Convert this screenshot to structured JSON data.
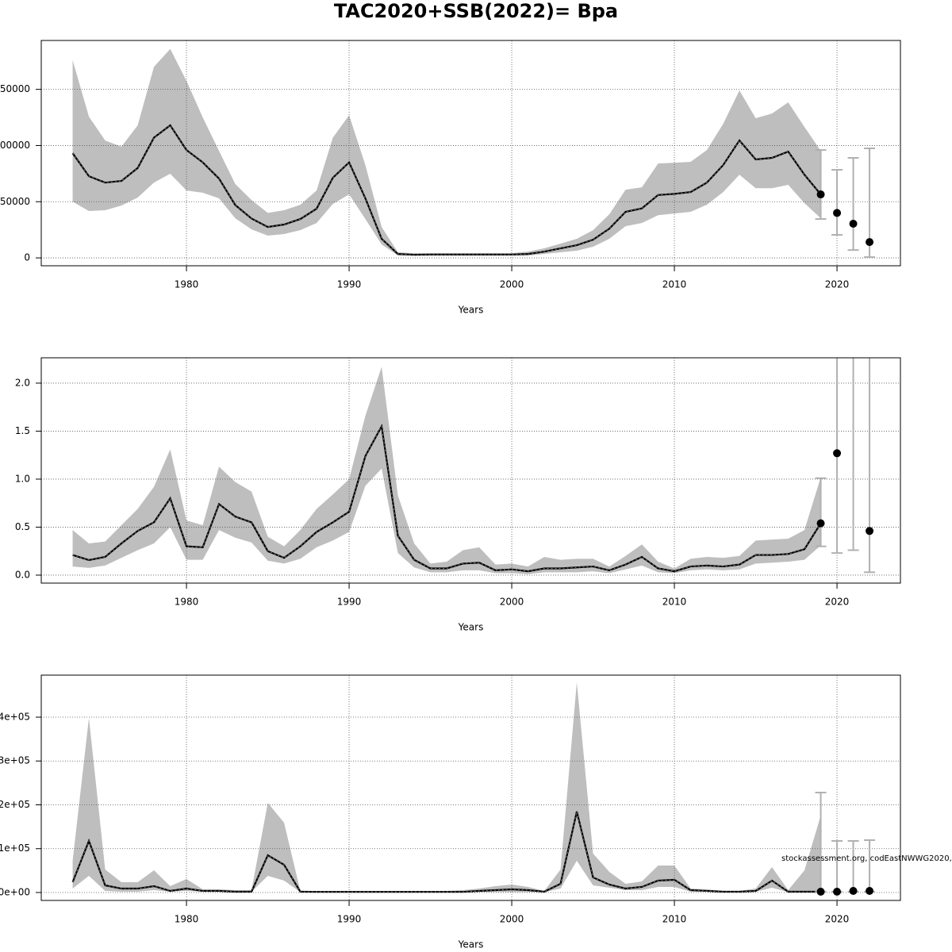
{
  "title": "TAC2020+SSB(2022)= Bpa",
  "annotation": "stockassessment.org, codEastNWWG2020,",
  "chart_data": [
    {
      "type": "line",
      "xlabel": "Years",
      "grid": true,
      "line_color": "#000000",
      "band_color": "#bebebe",
      "forecast_color": "#000000",
      "errorbar_color": "#b0b0b0",
      "xlim": [
        1971.07,
        2023.9
      ],
      "xticks": [
        1980,
        1990,
        2000,
        2010,
        2020
      ],
      "ylim": [
        -7000,
        193500
      ],
      "yticks": [
        0,
        50000,
        100000,
        150000
      ],
      "x": [
        1973,
        1974,
        1975,
        1976,
        1977,
        1978,
        1979,
        1980,
        1981,
        1982,
        1983,
        1984,
        1985,
        1986,
        1987,
        1988,
        1989,
        1990,
        1991,
        1992,
        1993,
        1994,
        1995,
        1996,
        1997,
        1998,
        1999,
        2000,
        2001,
        2002,
        2003,
        2004,
        2005,
        2006,
        2007,
        2008,
        2009,
        2010,
        2011,
        2012,
        2013,
        2014,
        2015,
        2016,
        2017,
        2018,
        2019
      ],
      "values": [
        93200,
        72700,
        67000,
        68500,
        80000,
        107000,
        118000,
        96000,
        85000,
        70600,
        47000,
        35000,
        27500,
        29700,
        34600,
        43800,
        71300,
        85000,
        53000,
        17000,
        3500,
        2800,
        3000,
        3000,
        3000,
        3000,
        3000,
        3000,
        3500,
        5600,
        8500,
        11300,
        16200,
        26000,
        41000,
        44000,
        56000,
        57000,
        58600,
        67000,
        82600,
        104500,
        87600,
        89000,
        94600,
        74000,
        56500
      ],
      "lower": [
        50000,
        41700,
        42400,
        46600,
        53700,
        67000,
        74900,
        60000,
        58000,
        53000,
        35300,
        25400,
        19800,
        21200,
        24700,
        31000,
        48000,
        56500,
        34600,
        12000,
        2100,
        2000,
        2000,
        2000,
        2000,
        2000,
        2000,
        2000,
        2100,
        3500,
        5000,
        6400,
        9900,
        17000,
        28200,
        31000,
        38000,
        39500,
        41000,
        47300,
        58600,
        74000,
        62000,
        62000,
        65000,
        48700,
        35300
      ],
      "upper": [
        176000,
        125700,
        104500,
        99000,
        118000,
        170000,
        186000,
        157500,
        125000,
        95300,
        65700,
        51500,
        40000,
        42400,
        47300,
        60000,
        107000,
        127000,
        82600,
        27500,
        5000,
        4200,
        4200,
        4200,
        4200,
        4200,
        4200,
        4200,
        5600,
        8500,
        12700,
        17000,
        24700,
        38800,
        60700,
        62800,
        84000,
        84700,
        85500,
        96000,
        119300,
        149000,
        124300,
        128500,
        138400,
        116500,
        95300
      ],
      "forecast": {
        "x": [
          2019,
          2020,
          2021,
          2022
        ],
        "values": [
          56500,
          40000,
          30400,
          14100
        ],
        "lower": [
          34600,
          20500,
          7000,
          700
        ],
        "upper": [
          96000,
          78400,
          89000,
          97500
        ]
      }
    },
    {
      "type": "line",
      "xlabel": "Years",
      "grid": true,
      "line_color": "#000000",
      "band_color": "#bebebe",
      "forecast_color": "#000000",
      "errorbar_color": "#b0b0b0",
      "xlim": [
        1971.07,
        2023.9
      ],
      "xticks": [
        1980,
        1990,
        2000,
        2010,
        2020
      ],
      "ylim": [
        -0.083,
        2.264
      ],
      "yticks": [
        {
          "value": 0,
          "label": "0.0"
        },
        0.5,
        {
          "value": 1,
          "label": "1.0"
        },
        1.5,
        {
          "value": 2,
          "label": "2.0"
        }
      ],
      "x": [
        1973,
        1974,
        1975,
        1976,
        1977,
        1978,
        1979,
        1980,
        1981,
        1982,
        1983,
        1984,
        1985,
        1986,
        1987,
        1988,
        1989,
        1990,
        1991,
        1992,
        1993,
        1994,
        1995,
        1996,
        1997,
        1998,
        1999,
        2000,
        2001,
        2002,
        2003,
        2004,
        2005,
        2006,
        2007,
        2008,
        2009,
        2010,
        2011,
        2012,
        2013,
        2014,
        2015,
        2016,
        2017,
        2018,
        2019
      ],
      "values": [
        0.21,
        0.157,
        0.19,
        0.33,
        0.46,
        0.55,
        0.8,
        0.3,
        0.29,
        0.74,
        0.61,
        0.55,
        0.25,
        0.18,
        0.3,
        0.45,
        0.55,
        0.66,
        1.24,
        1.55,
        0.41,
        0.16,
        0.07,
        0.07,
        0.12,
        0.13,
        0.05,
        0.06,
        0.04,
        0.07,
        0.07,
        0.08,
        0.09,
        0.05,
        0.11,
        0.19,
        0.07,
        0.04,
        0.09,
        0.1,
        0.09,
        0.11,
        0.21,
        0.21,
        0.22,
        0.27,
        0.54
      ],
      "lower": [
        0.09,
        0.075,
        0.1,
        0.18,
        0.26,
        0.33,
        0.5,
        0.16,
        0.16,
        0.47,
        0.39,
        0.34,
        0.15,
        0.12,
        0.17,
        0.29,
        0.36,
        0.45,
        0.93,
        1.11,
        0.23,
        0.08,
        0.03,
        0.03,
        0.05,
        0.05,
        0.02,
        0.02,
        0.01,
        0.03,
        0.03,
        0.03,
        0.04,
        0.02,
        0.06,
        0.1,
        0.03,
        0.02,
        0.05,
        0.06,
        0.05,
        0.06,
        0.12,
        0.13,
        0.14,
        0.16,
        0.31
      ],
      "upper": [
        0.47,
        0.33,
        0.35,
        0.52,
        0.69,
        0.92,
        1.31,
        0.57,
        0.52,
        1.13,
        0.97,
        0.87,
        0.4,
        0.3,
        0.47,
        0.69,
        0.84,
        1.0,
        1.66,
        2.17,
        0.83,
        0.33,
        0.12,
        0.14,
        0.26,
        0.29,
        0.11,
        0.12,
        0.09,
        0.19,
        0.16,
        0.17,
        0.17,
        0.09,
        0.2,
        0.32,
        0.14,
        0.07,
        0.17,
        0.19,
        0.18,
        0.2,
        0.36,
        0.37,
        0.38,
        0.47,
        1.02
      ],
      "forecast": {
        "x": [
          2019,
          2020,
          2021,
          2022
        ],
        "values": [
          0.54,
          1.27,
          null,
          0.46
        ],
        "lower": [
          0.3,
          0.23,
          0.26,
          0.03
        ],
        "upper": [
          1.01,
          2.3,
          2.3,
          2.3
        ]
      }
    },
    {
      "type": "line",
      "xlabel": "Years",
      "grid": true,
      "line_color": "#000000",
      "band_color": "#bebebe",
      "forecast_color": "#000000",
      "errorbar_color": "#b0b0b0",
      "xlim": [
        1971.07,
        2023.9
      ],
      "xticks": [
        1980,
        1990,
        2000,
        2010,
        2020
      ],
      "ylim": [
        -18100,
        495900
      ],
      "yticks": [
        {
          "value": 0,
          "label": "0e+00"
        },
        {
          "value": 100000,
          "label": "1e+05"
        },
        {
          "value": 200000,
          "label": "2e+05"
        },
        {
          "value": 300000,
          "label": "3e+05"
        },
        {
          "value": 400000,
          "label": "4e+05"
        }
      ],
      "x": [
        1973,
        1974,
        1975,
        1976,
        1977,
        1978,
        1979,
        1980,
        1981,
        1982,
        1983,
        1984,
        1985,
        1986,
        1987,
        1988,
        1989,
        1990,
        1991,
        1992,
        1993,
        1994,
        1995,
        1996,
        1997,
        1998,
        1999,
        2000,
        2001,
        2002,
        2003,
        2004,
        2005,
        2006,
        2007,
        2008,
        2009,
        2010,
        2011,
        2012,
        2013,
        2014,
        2015,
        2016,
        2017,
        2018,
        2019
      ],
      "values": [
        23500,
        117600,
        16300,
        9000,
        9000,
        14500,
        3600,
        9000,
        3600,
        3600,
        1800,
        1800,
        85000,
        63300,
        1800,
        1500,
        1500,
        1500,
        1500,
        1500,
        1500,
        1500,
        1500,
        1500,
        1500,
        3600,
        5400,
        7200,
        5400,
        1800,
        19900,
        184600,
        34400,
        18100,
        9000,
        12700,
        27100,
        29000,
        5400,
        3600,
        1800,
        1800,
        3600,
        27100,
        1800,
        1800,
        1800
      ],
      "lower": [
        9000,
        38000,
        3600,
        1800,
        1800,
        5400,
        1800,
        3600,
        1800,
        1800,
        1800,
        1800,
        38000,
        27100,
        1000,
        1000,
        1000,
        1000,
        1000,
        1000,
        1000,
        1000,
        1000,
        1000,
        1000,
        1000,
        1000,
        1000,
        1000,
        1000,
        9000,
        72400,
        16300,
        10900,
        5400,
        5400,
        12700,
        12700,
        1800,
        1800,
        1000,
        1000,
        1800,
        10900,
        1000,
        1000,
        1000
      ],
      "upper": [
        72400,
        398000,
        52500,
        23500,
        23500,
        50700,
        14500,
        30800,
        7200,
        7200,
        5400,
        5400,
        204500,
        159300,
        3600,
        3600,
        3600,
        3600,
        3600,
        3600,
        3600,
        3600,
        3600,
        3600,
        5400,
        9000,
        14500,
        18100,
        12700,
        3600,
        52500,
        479600,
        88700,
        47100,
        19900,
        25300,
        61500,
        61500,
        9000,
        7200,
        3600,
        3600,
        9000,
        57900,
        5400,
        50700,
        175600
      ],
      "forecast": {
        "x": [
          2019,
          2020,
          2021,
          2022
        ],
        "values": [
          1800,
          1800,
          3600,
          3600
        ],
        "lower": [
          1800,
          1800,
          1800,
          1800
        ],
        "upper": [
          228000,
          117600,
          117600,
          119500
        ]
      }
    }
  ]
}
